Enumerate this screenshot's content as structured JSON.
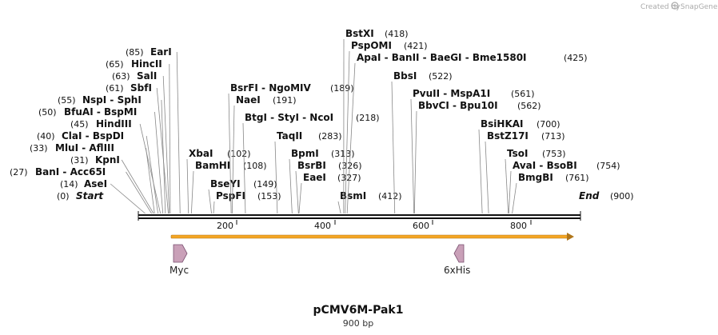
{
  "credit": {
    "text": "Created by",
    "brand": "SnapGene"
  },
  "map": {
    "total_bp": 900,
    "ruler_ticks": [
      "200",
      "400",
      "600",
      "800"
    ],
    "labels": [
      {
        "name": "Start",
        "pos": "(0)",
        "italic": true,
        "site": 0
      },
      {
        "name": "AseI",
        "pos": "(14)",
        "site": 14
      },
      {
        "name": "BanI  -  Acc65I",
        "pos": "(27)",
        "site": 27
      },
      {
        "name": "KpnI",
        "pos": "(31)",
        "site": 31
      },
      {
        "name": "MluI  -  AflIII",
        "pos": "(33)",
        "site": 33
      },
      {
        "name": "ClaI  -  BspDI",
        "pos": "(40)",
        "site": 40
      },
      {
        "name": "HindIII",
        "pos": "(45)",
        "site": 45
      },
      {
        "name": "BfuAI  -  BspMI",
        "pos": "(50)",
        "site": 50
      },
      {
        "name": "NspI  -  SphI",
        "pos": "(55)",
        "site": 55
      },
      {
        "name": "SbfI",
        "pos": "(61)",
        "site": 61
      },
      {
        "name": "SalI",
        "pos": "(63)",
        "site": 63
      },
      {
        "name": "HincII",
        "pos": "(65)",
        "site": 65
      },
      {
        "name": "EarI",
        "pos": "(85)",
        "site": 85
      },
      {
        "name": "XbaI",
        "pos": "(102)",
        "site": 102
      },
      {
        "name": "BamHI",
        "pos": "(108)",
        "site": 108
      },
      {
        "name": "BseYI",
        "pos": "(149)",
        "site": 149
      },
      {
        "name": "PspFI",
        "pos": "(153)",
        "site": 153
      },
      {
        "name": "BsrFI  -  NgoMIV",
        "pos": "(189)",
        "site": 189
      },
      {
        "name": "NaeI",
        "pos": "(191)",
        "site": 191
      },
      {
        "name": "BtgI  -  StyI  -  NcoI",
        "pos": "(218)",
        "site": 218
      },
      {
        "name": "TaqII",
        "pos": "(283)",
        "site": 283
      },
      {
        "name": "BpmI",
        "pos": "(313)",
        "site": 313
      },
      {
        "name": "BsrBI",
        "pos": "(326)",
        "site": 326
      },
      {
        "name": "EaeI",
        "pos": "(327)",
        "site": 327
      },
      {
        "name": "BsmI",
        "pos": "(412)",
        "site": 412
      },
      {
        "name": "BstXI",
        "pos": "(418)",
        "site": 418
      },
      {
        "name": "PspOMI",
        "pos": "(421)",
        "site": 421
      },
      {
        "name": "ApaI  -  BanII  -  BaeGI  -  Bme1580I",
        "pos": "(425)",
        "site": 425
      },
      {
        "name": "BbsI",
        "pos": "(522)",
        "site": 522
      },
      {
        "name": "PvuII  -  MspA1I",
        "pos": "(561)",
        "site": 561
      },
      {
        "name": "BbvCI  -  Bpu10I",
        "pos": "(562)",
        "site": 562
      },
      {
        "name": "BsiHKAI",
        "pos": "(700)",
        "site": 700
      },
      {
        "name": "BstZ17I",
        "pos": "(713)",
        "site": 713
      },
      {
        "name": "TsoI",
        "pos": "(753)",
        "site": 753
      },
      {
        "name": "AvaI  -  BsoBI",
        "pos": "(754)",
        "site": 754
      },
      {
        "name": "BmgBI",
        "pos": "(761)",
        "site": 761
      },
      {
        "name": "End",
        "pos": "(900)",
        "italic": true,
        "site": 900
      }
    ],
    "features": [
      {
        "name": "Myc",
        "direction": "forward"
      },
      {
        "name": "6xHis",
        "direction": "reverse"
      }
    ],
    "orf_color": "#f5a623",
    "feature_color": "#c9a0b8"
  },
  "footer": {
    "title": "pCMV6M-Pak1",
    "size": "900 bp"
  }
}
